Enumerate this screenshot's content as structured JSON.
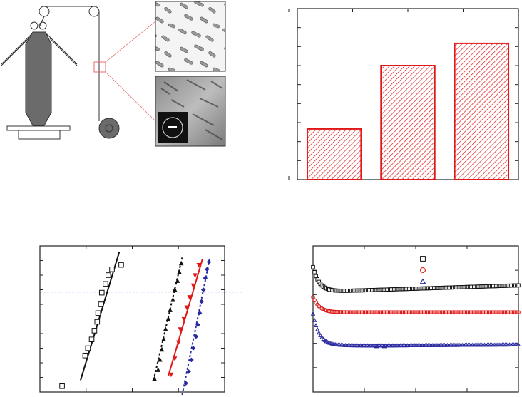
{
  "figure": {
    "panels": [
      "schematic",
      "bar-chart",
      "probability-plot",
      "time-series-plot"
    ]
  },
  "colors": {
    "red": "#e01818",
    "blue": "#2a2aa0",
    "black": "#111111",
    "dashed_line": "#5555dd",
    "gray": "#6a6a6a"
  },
  "chart_data": [
    {
      "type": "bar",
      "categories": [
        "",
        "",
        ""
      ],
      "values": [
        1.6,
        3.6,
        4.3
      ],
      "ylim": [
        0,
        5.4
      ],
      "title": "",
      "xlabel": "",
      "ylabel": "",
      "grid": false,
      "hatch": "diagonal",
      "color": "#e01818"
    },
    {
      "type": "scatter",
      "title": "",
      "xlabel": "",
      "ylabel": "",
      "xlim": [
        0,
        10
      ],
      "ylim": [
        0,
        10
      ],
      "reference_line_y": 6.85,
      "series": [
        {
          "marker": "open-square",
          "color": "#111111",
          "x": [
            1.2,
            2.45,
            2.6,
            2.8,
            2.95,
            3.1,
            3.15,
            3.3,
            3.35,
            3.55,
            3.7,
            3.9,
            4.4
          ],
          "y": [
            0.4,
            2.5,
            3.0,
            3.6,
            4.2,
            4.8,
            5.4,
            6.0,
            6.8,
            7.4,
            8.0,
            8.4,
            8.7
          ],
          "fit": {
            "x": [
              2.2,
              4.3
            ],
            "y": [
              0.8,
              9.6
            ]
          }
        },
        {
          "marker": "filled-triangle-up",
          "color": "#111111",
          "x": [
            6.2,
            6.4,
            6.5,
            6.6,
            6.7,
            6.8,
            6.95,
            7.05,
            7.2,
            7.3,
            7.45,
            7.55,
            7.65
          ],
          "y": [
            0.9,
            1.5,
            2.2,
            2.9,
            3.6,
            4.3,
            5.0,
            5.6,
            6.3,
            7.0,
            7.6,
            8.2,
            8.8
          ],
          "fit": {
            "x": [
              6.15,
              7.7
            ],
            "y": [
              0.8,
              9.2
            ],
            "dashed": true
          }
        },
        {
          "marker": "filled-triangle-down",
          "color": "#e01818",
          "x": [
            7.1,
            7.3,
            7.5,
            7.6,
            7.8,
            7.95,
            8.1,
            8.3,
            8.4,
            8.6
          ],
          "y": [
            1.2,
            2.3,
            3.4,
            4.3,
            5.0,
            5.8,
            6.5,
            7.3,
            8.0,
            8.7
          ],
          "fit": {
            "x": [
              6.95,
              8.8
            ],
            "y": [
              1.1,
              9.1
            ]
          }
        },
        {
          "marker": "filled-diamond",
          "color": "#2a2aa0",
          "x": [
            7.9,
            8.05,
            8.2,
            8.3,
            8.45,
            8.55,
            8.65,
            8.75,
            8.85,
            8.95,
            9.05,
            9.15
          ],
          "y": [
            0.6,
            1.4,
            2.2,
            3.0,
            3.8,
            4.6,
            5.4,
            6.2,
            7.0,
            7.8,
            8.4,
            8.9
          ],
          "fit": {
            "x": [
              7.7,
              9.2
            ],
            "y": [
              -0.2,
              9.2
            ],
            "dashed": true
          }
        }
      ]
    },
    {
      "type": "scatter",
      "title": "",
      "xlabel": "",
      "ylabel": "",
      "xlim": [
        0,
        10
      ],
      "ylim": [
        0,
        10
      ],
      "series": [
        {
          "marker": "open-square",
          "color": "#111111",
          "level": 6.85,
          "start": 8.55,
          "dip": 0.0
        },
        {
          "marker": "open-circle",
          "color": "#e01818",
          "level": 5.45,
          "start": 6.5,
          "dip": 0.0
        },
        {
          "marker": "open-triangle",
          "color": "#2a2aa0",
          "level": 3.2,
          "start": 5.35,
          "dip": 0.0
        }
      ],
      "legend": "top-right",
      "legend_labels": [
        "",
        "",
        ""
      ]
    }
  ]
}
